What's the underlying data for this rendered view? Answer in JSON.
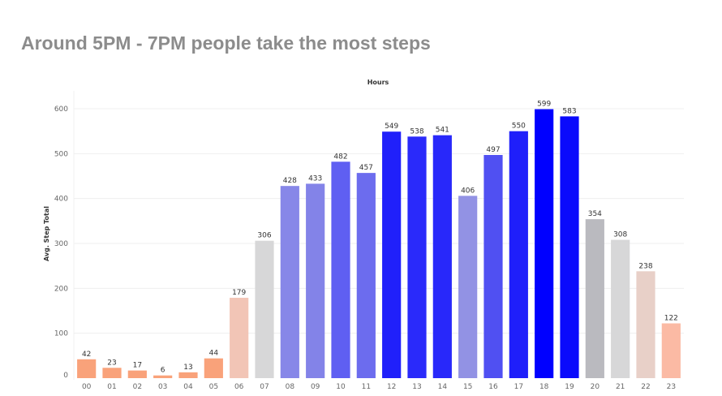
{
  "page": {
    "title": "Around 5PM - 7PM people take the most steps"
  },
  "chart_data": {
    "type": "bar",
    "title": "",
    "xlabel": "Hours",
    "ylabel": "Avg. Step Total",
    "xlabel_position": "top",
    "categories": [
      "00",
      "01",
      "02",
      "03",
      "04",
      "05",
      "06",
      "07",
      "08",
      "09",
      "10",
      "11",
      "12",
      "13",
      "14",
      "15",
      "16",
      "17",
      "18",
      "19",
      "20",
      "21",
      "22",
      "23"
    ],
    "values": [
      42,
      23,
      17,
      6,
      13,
      44,
      179,
      306,
      428,
      433,
      482,
      457,
      549,
      538,
      541,
      406,
      497,
      550,
      599,
      583,
      354,
      308,
      238,
      122
    ],
    "colors": [
      "#f9a27a",
      "#f9a27a",
      "#f9a27a",
      "#f9a27a",
      "#f9a27a",
      "#f9a27a",
      "#f2c5b6",
      "#d7d7d8",
      "#8787e8",
      "#8383e8",
      "#5f5ff2",
      "#6c6cee",
      "#2020fa",
      "#2a2afa",
      "#2828fa",
      "#9292e4",
      "#5050f2",
      "#1f1ffa",
      "#0000ff",
      "#0a0afc",
      "#bababf",
      "#d7d7d8",
      "#e8d0c8",
      "#fbbaa4"
    ],
    "ylim": [
      0,
      640
    ],
    "yticks": [
      0,
      100,
      200,
      300,
      400,
      500,
      600
    ],
    "grid": true
  }
}
